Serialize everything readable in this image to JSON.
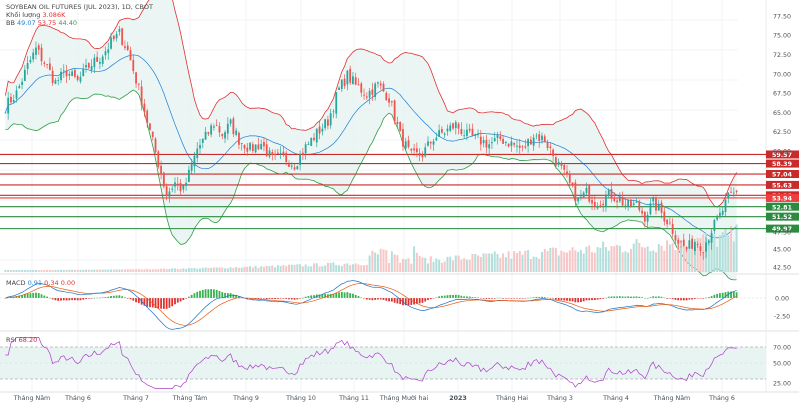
{
  "header": {
    "title": "SOYBEAN OIL FUTURES (JUL 2023), 1D, CBOT",
    "volume_label": "Khối lượng",
    "volume_value": "3.086K",
    "bb_label": "BB",
    "bb_basis": "49.07",
    "bb_upper": "53.75",
    "bb_lower": "44.40",
    "macd_label": "MACD",
    "macd_value": "0.91",
    "macd_signal": "0.34",
    "macd_hist": "0.00",
    "rsi_label": "RSI",
    "rsi_value": "68.20"
  },
  "chart_data": [
    {
      "type": "line",
      "title": "SOYBEAN OIL FUTURES (JUL 2023), 1D, CBOT",
      "x_tick_labels": [
        "Tháng Năm",
        "Tháng 6",
        "Tháng 7",
        "Tháng Tám",
        "Tháng 9",
        "Tháng 10",
        "Tháng 11",
        "Tháng Mười hai",
        "2023",
        "Tháng Hai",
        "Tháng 3",
        "Tháng 4",
        "Tháng Năm",
        "Tháng 6"
      ],
      "y_tick_labels": [
        "77.50",
        "75.00",
        "72.50",
        "70.00",
        "67.50",
        "65.00",
        "62.50",
        "60.00",
        "47.50",
        "45.00",
        "42.50"
      ],
      "ylim": [
        42.0,
        78.5
      ],
      "price_path": [
        [
          0,
          65.8
        ],
        [
          4,
          67.5
        ],
        [
          8,
          71.0
        ],
        [
          11,
          73.2
        ],
        [
          14,
          71.5
        ],
        [
          18,
          68.9
        ],
        [
          22,
          70.3
        ],
        [
          26,
          69.0
        ],
        [
          30,
          71.0
        ],
        [
          34,
          72.1
        ],
        [
          38,
          74.0
        ],
        [
          41,
          75.2
        ],
        [
          44,
          73.0
        ],
        [
          48,
          68.0
        ],
        [
          52,
          62.5
        ],
        [
          55,
          58.5
        ],
        [
          58,
          54.4
        ],
        [
          61,
          55.9
        ],
        [
          64,
          54.9
        ],
        [
          66,
          57.0
        ],
        [
          69,
          60.3
        ],
        [
          72,
          61.8
        ],
        [
          75,
          63.6
        ],
        [
          78,
          62.2
        ],
        [
          81,
          63.5
        ],
        [
          84,
          61.5
        ],
        [
          88,
          60.3
        ],
        [
          92,
          61.0
        ],
        [
          96,
          58.9
        ],
        [
          100,
          59.2
        ],
        [
          104,
          58.3
        ],
        [
          108,
          60.5
        ],
        [
          112,
          62.3
        ],
        [
          116,
          63.9
        ],
        [
          120,
          68.0
        ],
        [
          123,
          69.8
        ],
        [
          126,
          68.5
        ],
        [
          130,
          67.4
        ],
        [
          134,
          68.6
        ],
        [
          138,
          66.9
        ],
        [
          142,
          62.0
        ],
        [
          146,
          59.3
        ],
        [
          150,
          59.6
        ],
        [
          154,
          61.7
        ],
        [
          158,
          62.5
        ],
        [
          162,
          63.4
        ],
        [
          166,
          62.0
        ],
        [
          170,
          61.5
        ],
        [
          174,
          60.9
        ],
        [
          178,
          61.6
        ],
        [
          182,
          61.0
        ],
        [
          186,
          60.2
        ],
        [
          190,
          62.1
        ],
        [
          194,
          61.5
        ],
        [
          198,
          58.8
        ],
        [
          202,
          56.3
        ],
        [
          206,
          53.6
        ],
        [
          209,
          54.6
        ],
        [
          212,
          53.4
        ],
        [
          215,
          53.8
        ],
        [
          218,
          54.4
        ],
        [
          221,
          53.6
        ],
        [
          224,
          52.9
        ],
        [
          227,
          53.0
        ],
        [
          230,
          51.6
        ],
        [
          233,
          53.3
        ],
        [
          236,
          52.0
        ],
        [
          239,
          50.5
        ],
        [
          242,
          48.4
        ],
        [
          245,
          47.3
        ],
        [
          248,
          48.4
        ],
        [
          251,
          47.6
        ],
        [
          254,
          49.8
        ],
        [
          257,
          51.6
        ],
        [
          260,
          53.9
        ],
        [
          263,
          54.6
        ]
      ],
      "series": [
        {
          "name": "BB",
          "value": 49.07,
          "color": "#1c7ed6"
        },
        {
          "name": "BB upper",
          "value": 53.75,
          "color": "#e03131"
        },
        {
          "name": "BB lower",
          "value": 44.4,
          "color": "#2f9e44"
        }
      ],
      "horizontal_levels": [
        {
          "label": "59.57",
          "value": 59.57,
          "color": "#c92a2a"
        },
        {
          "label": "58.39",
          "value": 58.39,
          "color": "#c92a2a"
        },
        {
          "label": "57.04",
          "value": 57.04,
          "color": "#c92a2a"
        },
        {
          "label": "55.63",
          "value": 55.63,
          "color": "#c92a2a"
        },
        {
          "label": "54.28",
          "value": 54.28,
          "color": "#c92a2a"
        },
        {
          "label": "53.94",
          "value": 53.94,
          "color": "#f03e3e"
        },
        {
          "label": "52.81",
          "value": 52.81,
          "color": "#2b8a3e"
        },
        {
          "label": "51.52",
          "value": 51.52,
          "color": "#2b8a3e"
        },
        {
          "label": "49.97",
          "value": 49.97,
          "color": "#2b8a3e"
        }
      ]
    },
    {
      "type": "bar",
      "title": "MACD",
      "values_label": [
        "0.91",
        "0.34",
        "0.00"
      ],
      "y_tick_labels": [
        "0.00",
        "-2.50"
      ],
      "ylim": [
        -3.6,
        1.8
      ]
    },
    {
      "type": "line",
      "title": "RSI",
      "value": 68.2,
      "y_tick_labels": [
        "70.00",
        "50.00",
        "25.00"
      ],
      "ylim": [
        18,
        82
      ],
      "bands": [
        70,
        30
      ]
    }
  ]
}
